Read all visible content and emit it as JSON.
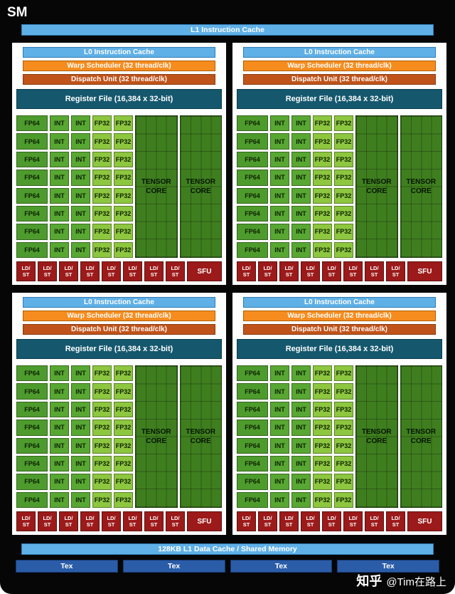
{
  "header": {
    "title": "SM"
  },
  "l1_instruction_cache": "L1 Instruction Cache",
  "quadrant_count": 4,
  "quadrant": {
    "l0_cache": "L0 Instruction Cache",
    "warp_scheduler": "Warp Scheduler (32 thread/clk)",
    "dispatch_unit": "Dispatch Unit (32 thread/clk)",
    "register_file": "Register File (16,384 x 32-bit)",
    "rows": 8,
    "columns": [
      {
        "type": "fp64",
        "label": "FP64"
      },
      {
        "type": "int",
        "label": "INT"
      },
      {
        "type": "int",
        "label": "INT"
      },
      {
        "type": "fp32",
        "label": "FP32"
      },
      {
        "type": "fp32",
        "label": "FP32"
      }
    ],
    "tensor_cores": [
      {
        "label": "TENSOR CORE"
      },
      {
        "label": "TENSOR CORE"
      }
    ],
    "ldst": {
      "line1": "LD/",
      "line2": "ST",
      "count": 8
    },
    "sfu": "SFU"
  },
  "shared_memory": "128KB L1 Data Cache / Shared Memory",
  "tex": {
    "label": "Tex",
    "count": 4
  },
  "watermark": {
    "brand": "知乎",
    "handle": "@Tim在路上"
  },
  "colors": {
    "cache_blue": "#5FB0E6",
    "warp_orange": "#F68C1E",
    "dispatch_orange": "#C0531A",
    "regfile_teal": "#15586E",
    "fp64_green": "#4E9B2D",
    "int_green": "#58A733",
    "fp32_green": "#8DC63F",
    "tensor_green": "#3F7E1F",
    "ldst_red": "#9C1A1A",
    "tex_blue": "#2A5CA8"
  }
}
